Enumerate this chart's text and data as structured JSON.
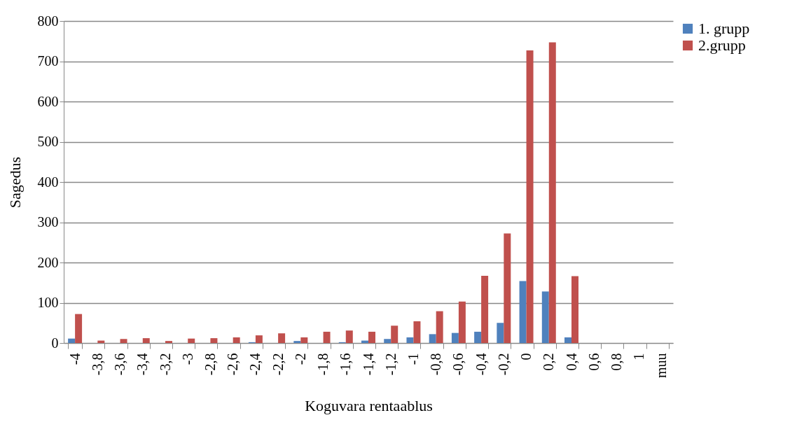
{
  "chart_data": {
    "type": "bar",
    "xlabel": "Koguvara rentaablus",
    "ylabel": "Sagedus",
    "categories": [
      "-4",
      "-3,8",
      "-3,6",
      "-3,4",
      "-3,2",
      "-3",
      "-2,8",
      "-2,6",
      "-2,4",
      "-2,2",
      "-2",
      "-1,8",
      "-1,6",
      "-1,4",
      "-1,2",
      "-1",
      "-0,8",
      "-0,6",
      "-0,4",
      "-0,2",
      "0",
      "0,2",
      "0,4",
      "0,6",
      "0,8",
      "1",
      "muu"
    ],
    "series": [
      {
        "name": "1. grupp",
        "color": "#4f81bd",
        "values": [
          11,
          0,
          0,
          0,
          0,
          0,
          0,
          0,
          2,
          0,
          5,
          0,
          2,
          6,
          10,
          14,
          22,
          25,
          28,
          50,
          154,
          128,
          14,
          0,
          0,
          0,
          0
        ]
      },
      {
        "name": "2.grupp",
        "color": "#c0504d",
        "values": [
          72,
          6,
          10,
          12,
          5,
          11,
          12,
          14,
          19,
          24,
          14,
          28,
          31,
          28,
          43,
          54,
          79,
          103,
          167,
          272,
          727,
          747,
          166,
          0,
          0,
          0,
          0
        ]
      }
    ],
    "ylim": [
      0,
      800
    ],
    "yticks": [
      0,
      100,
      200,
      300,
      400,
      500,
      600,
      700,
      800
    ],
    "grid": "y",
    "legend": "right"
  }
}
